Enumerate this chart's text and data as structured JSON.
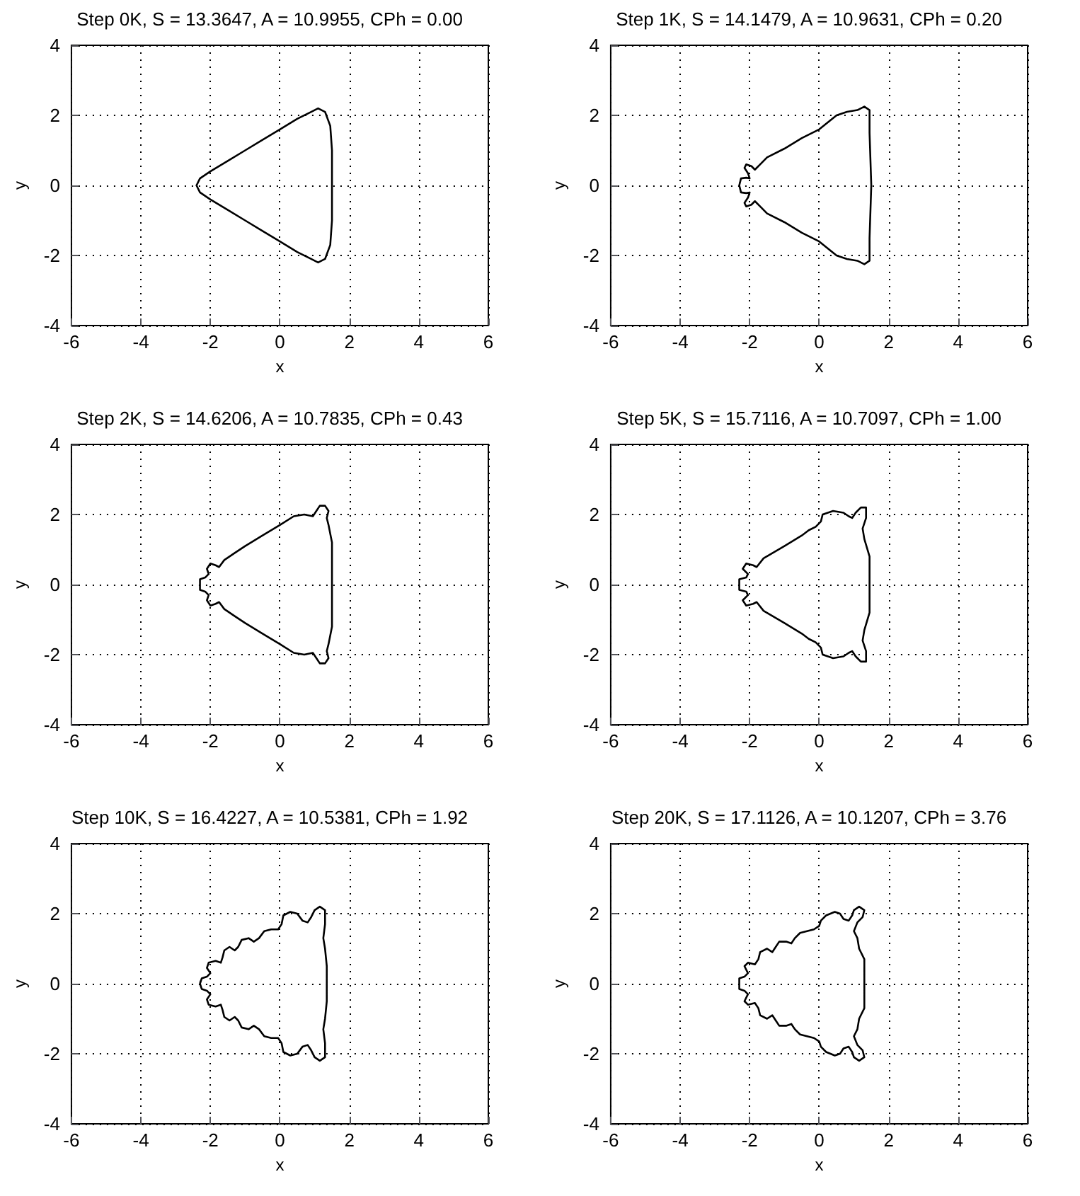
{
  "chart_data": [
    {
      "type": "line",
      "title": "Step 0K, S = 13.3647, A = 10.9955, CPh = 0.00",
      "xlabel": "x",
      "ylabel": "y",
      "xlim": [
        -6,
        6
      ],
      "ylim": [
        -4,
        4
      ],
      "xticks": [
        -6,
        -4,
        -2,
        0,
        2,
        4,
        6
      ],
      "yticks": [
        -4,
        -2,
        0,
        2,
        4
      ],
      "grid": true,
      "series": [
        {
          "color": "#000000",
          "x": [
            -2.4,
            -2.3,
            -2,
            -1.5,
            -1,
            -0.5,
            0,
            0.5,
            0.9,
            1.1,
            1.3,
            1.45,
            1.5,
            1.5,
            1.5,
            1.45,
            1.3,
            1.1,
            0.9,
            0.5,
            0,
            -0.5,
            -1,
            -1.5,
            -2,
            -2.3,
            -2.4,
            -2.35
          ],
          "values": [
            0,
            0.2,
            0.4,
            0.7,
            1,
            1.3,
            1.6,
            1.9,
            2.1,
            2.2,
            2.1,
            1.7,
            1,
            0,
            -1,
            -1.7,
            -2.1,
            -2.2,
            -2.1,
            -1.9,
            -1.6,
            -1.3,
            -1,
            -0.7,
            -0.4,
            -0.2,
            0,
            0.1
          ]
        }
      ]
    },
    {
      "type": "line",
      "title": "Step 1K, S = 14.1479, A = 10.9631, CPh = 0.20",
      "xlabel": "x",
      "ylabel": "y",
      "xlim": [
        -6,
        6
      ],
      "ylim": [
        -4,
        4
      ],
      "xticks": [
        -6,
        -4,
        -2,
        0,
        2,
        4,
        6
      ],
      "yticks": [
        -4,
        -2,
        0,
        2,
        4
      ],
      "grid": true,
      "series": [
        {
          "color": "#000000",
          "x": [
            -2.3,
            -2.25,
            -2.1,
            -2.0,
            -2.05,
            -2.15,
            -2.1,
            -1.95,
            -1.85,
            -1.7,
            -1.5,
            -1,
            -0.5,
            0,
            0.5,
            0.8,
            1.1,
            1.3,
            1.45,
            1.45,
            1.5,
            1.45,
            1.45,
            1.3,
            1.1,
            0.8,
            0.5,
            0,
            -0.5,
            -1,
            -1.5,
            -1.7,
            -1.85,
            -1.95,
            -2.1,
            -2.15,
            -2.05,
            -2.0,
            -2.1,
            -2.25,
            -2.3,
            -2.28
          ],
          "values": [
            0,
            0.2,
            0.22,
            0.2,
            0.35,
            0.5,
            0.6,
            0.55,
            0.45,
            0.6,
            0.8,
            1.05,
            1.35,
            1.6,
            2.0,
            2.1,
            2.15,
            2.25,
            2.15,
            1.5,
            0,
            -1.5,
            -2.15,
            -2.25,
            -2.15,
            -2.1,
            -2.0,
            -1.6,
            -1.35,
            -1.05,
            -0.8,
            -0.6,
            -0.45,
            -0.55,
            -0.6,
            -0.5,
            -0.35,
            -0.2,
            -0.22,
            -0.2,
            0,
            0.08
          ]
        }
      ]
    },
    {
      "type": "line",
      "title": "Step 2K, S = 14.6206, A = 10.7835, CPh = 0.43",
      "xlabel": "x",
      "ylabel": "y",
      "xlim": [
        -6,
        6
      ],
      "ylim": [
        -4,
        4
      ],
      "xticks": [
        -6,
        -4,
        -2,
        0,
        2,
        4,
        6
      ],
      "yticks": [
        -4,
        -2,
        0,
        2,
        4
      ],
      "grid": true,
      "series": [
        {
          "color": "#000000",
          "x": [
            -2.3,
            -2.3,
            -2.15,
            -2.05,
            -2.1,
            -2.0,
            -1.85,
            -1.75,
            -1.6,
            -1.3,
            -1,
            -0.5,
            0,
            0.4,
            0.7,
            0.95,
            1.05,
            1.15,
            1.3,
            1.4,
            1.35,
            1.4,
            1.5,
            1.5,
            1.5,
            1.4,
            1.35,
            1.4,
            1.3,
            1.15,
            1.05,
            0.95,
            0.7,
            0.4,
            0,
            -0.5,
            -1,
            -1.3,
            -1.6,
            -1.75,
            -1.85,
            -2.0,
            -2.1,
            -2.05,
            -2.15,
            -2.3,
            -2.3,
            -2.3
          ],
          "values": [
            0,
            0.15,
            0.2,
            0.3,
            0.45,
            0.6,
            0.55,
            0.5,
            0.7,
            0.9,
            1.1,
            1.4,
            1.7,
            1.95,
            2.0,
            1.95,
            2.1,
            2.25,
            2.25,
            2.1,
            1.9,
            1.7,
            1.2,
            0,
            -1.2,
            -1.7,
            -1.9,
            -2.1,
            -2.25,
            -2.25,
            -2.1,
            -1.95,
            -2.0,
            -1.95,
            -1.7,
            -1.4,
            -1.1,
            -0.9,
            -0.7,
            -0.5,
            -0.55,
            -0.6,
            -0.45,
            -0.3,
            -0.2,
            -0.15,
            0,
            0.08
          ]
        }
      ]
    },
    {
      "type": "line",
      "title": "Step 5K, S = 15.7116, A = 10.7097, CPh = 1.00",
      "xlabel": "x",
      "ylabel": "y",
      "xlim": [
        -6,
        6
      ],
      "ylim": [
        -4,
        4
      ],
      "xticks": [
        -6,
        -4,
        -2,
        0,
        2,
        4,
        6
      ],
      "yticks": [
        -4,
        -2,
        0,
        2,
        4
      ],
      "grid": true,
      "series": [
        {
          "color": "#000000",
          "x": [
            -2.3,
            -2.3,
            -2.1,
            -2.05,
            -2.2,
            -2.1,
            -1.9,
            -1.8,
            -1.6,
            -1,
            -0.5,
            -0.3,
            -0.1,
            0.05,
            0.1,
            0.4,
            0.7,
            0.85,
            0.95,
            1.05,
            1.2,
            1.35,
            1.35,
            1.25,
            1.3,
            1.45,
            1.45,
            1.45,
            1.3,
            1.25,
            1.35,
            1.35,
            1.2,
            1.05,
            0.95,
            0.85,
            0.7,
            0.4,
            0.1,
            0.05,
            -0.1,
            -0.3,
            -0.5,
            -1,
            -1.6,
            -1.8,
            -1.9,
            -2.1,
            -2.2,
            -2.05,
            -2.1,
            -2.3,
            -2.3,
            -2.3
          ],
          "values": [
            0,
            0.15,
            0.2,
            0.3,
            0.45,
            0.6,
            0.55,
            0.5,
            0.75,
            1.1,
            1.4,
            1.55,
            1.65,
            1.8,
            2.0,
            2.1,
            2.05,
            1.95,
            1.9,
            2.05,
            2.2,
            2.2,
            1.9,
            1.6,
            1.3,
            0.8,
            0,
            -0.8,
            -1.3,
            -1.6,
            -1.9,
            -2.2,
            -2.2,
            -2.05,
            -1.9,
            -1.95,
            -2.05,
            -2.1,
            -2.0,
            -1.8,
            -1.65,
            -1.55,
            -1.4,
            -1.1,
            -0.75,
            -0.5,
            -0.55,
            -0.6,
            -0.45,
            -0.3,
            -0.2,
            -0.15,
            0,
            0.08
          ]
        }
      ]
    },
    {
      "type": "line",
      "title": "Step 10K, S = 16.4227, A = 10.5381, CPh = 1.92",
      "xlabel": "x",
      "ylabel": "y",
      "xlim": [
        -6,
        6
      ],
      "ylim": [
        -4,
        4
      ],
      "xticks": [
        -6,
        -4,
        -2,
        0,
        2,
        4,
        6
      ],
      "yticks": [
        -4,
        -2,
        0,
        2,
        4
      ],
      "grid": true,
      "series": [
        {
          "color": "#000000",
          "x": [
            -2.3,
            -2.25,
            -2.1,
            -2.0,
            -2.1,
            -2.05,
            -1.85,
            -1.7,
            -1.65,
            -1.6,
            -1.45,
            -1.3,
            -1.2,
            -1.1,
            -0.9,
            -0.75,
            -0.6,
            -0.45,
            -0.25,
            -0.05,
            0.05,
            0.1,
            0.3,
            0.5,
            0.65,
            0.8,
            0.9,
            1.0,
            1.15,
            1.3,
            1.3,
            1.25,
            1.3,
            1.35,
            1.35,
            1.35,
            1.3,
            1.25,
            1.3,
            1.3,
            1.15,
            1.0,
            0.9,
            0.8,
            0.65,
            0.5,
            0.3,
            0.1,
            0.05,
            -0.05,
            -0.25,
            -0.45,
            -0.6,
            -0.75,
            -0.9,
            -1.1,
            -1.2,
            -1.3,
            -1.45,
            -1.6,
            -1.65,
            -1.7,
            -1.85,
            -2.05,
            -2.1,
            -2.0,
            -2.1,
            -2.25,
            -2.3,
            -2.28
          ],
          "values": [
            0,
            0.15,
            0.2,
            0.3,
            0.45,
            0.6,
            0.65,
            0.6,
            0.75,
            0.95,
            1.05,
            0.95,
            1.05,
            1.25,
            1.3,
            1.2,
            1.3,
            1.5,
            1.55,
            1.55,
            1.7,
            1.95,
            2.05,
            2.0,
            1.8,
            1.75,
            1.9,
            2.1,
            2.2,
            2.1,
            1.7,
            1.3,
            1.0,
            0.5,
            0,
            -0.5,
            -1.0,
            -1.3,
            -1.7,
            -2.1,
            -2.2,
            -2.1,
            -1.9,
            -1.75,
            -1.8,
            -2.0,
            -2.05,
            -1.95,
            -1.7,
            -1.55,
            -1.55,
            -1.5,
            -1.3,
            -1.2,
            -1.3,
            -1.25,
            -1.05,
            -0.95,
            -1.05,
            -0.95,
            -0.75,
            -0.6,
            -0.65,
            -0.6,
            -0.45,
            -0.3,
            -0.2,
            -0.15,
            0,
            0.08
          ]
        }
      ]
    },
    {
      "type": "line",
      "title": "Step 20K, S = 17.1126, A = 10.1207, CPh = 3.76",
      "xlabel": "x",
      "ylabel": "y",
      "xlim": [
        -6,
        6
      ],
      "ylim": [
        -4,
        4
      ],
      "xticks": [
        -6,
        -4,
        -2,
        0,
        2,
        4,
        6
      ],
      "yticks": [
        -4,
        -2,
        0,
        2,
        4
      ],
      "grid": true,
      "series": [
        {
          "color": "#000000",
          "x": [
            -2.3,
            -2.3,
            -2.15,
            -2.05,
            -2.15,
            -2.05,
            -1.85,
            -1.75,
            -1.7,
            -1.5,
            -1.35,
            -1.25,
            -1.15,
            -0.95,
            -0.8,
            -0.7,
            -0.55,
            -0.35,
            -0.15,
            0,
            0.05,
            0.2,
            0.45,
            0.6,
            0.7,
            0.85,
            0.95,
            1.0,
            1.15,
            1.3,
            1.25,
            1.1,
            1.0,
            1.1,
            1.15,
            1.3,
            1.3,
            1.3,
            1.15,
            1.1,
            1.0,
            1.1,
            1.25,
            1.3,
            1.15,
            1.0,
            0.95,
            0.85,
            0.7,
            0.6,
            0.45,
            0.2,
            0.05,
            0,
            -0.15,
            -0.35,
            -0.55,
            -0.7,
            -0.8,
            -0.95,
            -1.15,
            -1.25,
            -1.35,
            -1.5,
            -1.7,
            -1.75,
            -1.85,
            -2.05,
            -2.15,
            -2.05,
            -2.15,
            -2.3,
            -2.3,
            -2.3
          ],
          "values": [
            0,
            0.15,
            0.2,
            0.3,
            0.5,
            0.6,
            0.55,
            0.7,
            0.9,
            1.0,
            0.9,
            1.05,
            1.2,
            1.2,
            1.15,
            1.3,
            1.45,
            1.5,
            1.55,
            1.65,
            1.8,
            1.95,
            2.05,
            2.0,
            1.85,
            1.8,
            1.95,
            2.1,
            2.2,
            2.1,
            1.9,
            1.75,
            1.5,
            1.3,
            1.0,
            0.7,
            0,
            -0.7,
            -1.0,
            -1.3,
            -1.5,
            -1.75,
            -1.9,
            -2.1,
            -2.2,
            -2.1,
            -1.95,
            -1.8,
            -1.85,
            -2.0,
            -2.05,
            -1.95,
            -1.8,
            -1.65,
            -1.55,
            -1.5,
            -1.45,
            -1.3,
            -1.15,
            -1.2,
            -1.2,
            -1.05,
            -0.9,
            -1.0,
            -0.9,
            -0.7,
            -0.55,
            -0.6,
            -0.5,
            -0.3,
            -0.2,
            -0.15,
            0,
            0.08
          ]
        }
      ]
    }
  ]
}
